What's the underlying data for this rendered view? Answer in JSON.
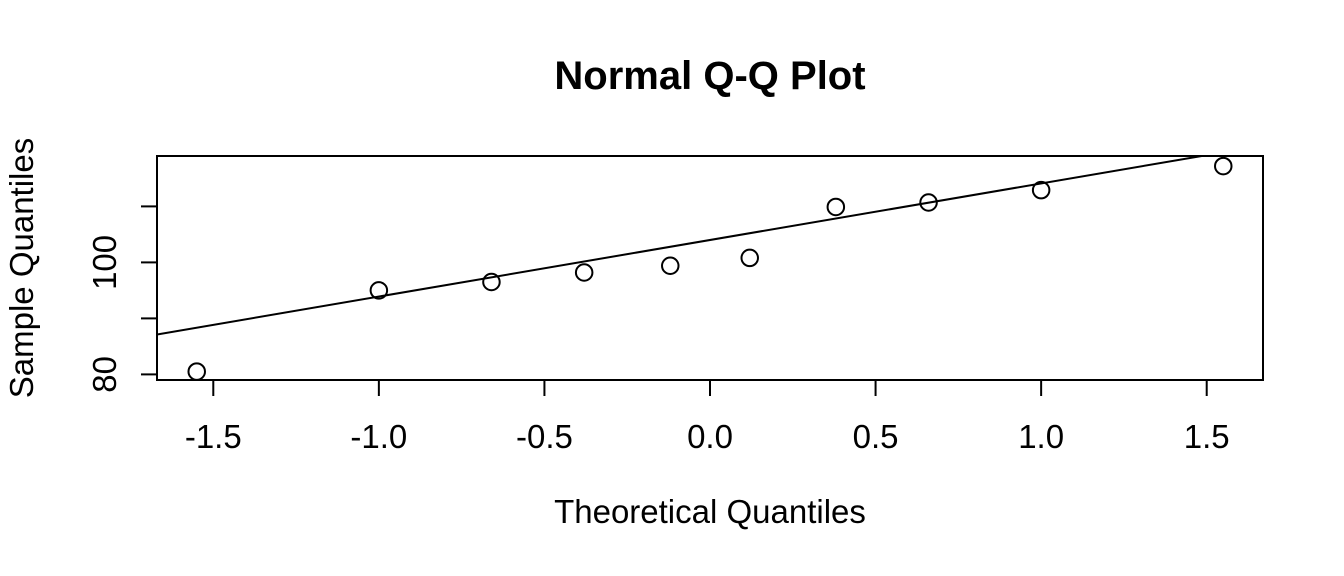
{
  "chart_data": {
    "type": "scatter",
    "subtype": "normal-qq-plot",
    "title": "Normal Q-Q Plot",
    "xlabel": "Theoretical Quantiles",
    "ylabel": "Sample Quantiles",
    "xlim": [
      -1.67,
      1.67
    ],
    "ylim": [
      79.0,
      119.0
    ],
    "grid": false,
    "legend": "none",
    "x_ticks": [
      {
        "value": -1.5,
        "label": "-1.5"
      },
      {
        "value": -1.0,
        "label": "-1.0"
      },
      {
        "value": -0.5,
        "label": "-0.5"
      },
      {
        "value": 0.0,
        "label": "0.0"
      },
      {
        "value": 0.5,
        "label": "0.5"
      },
      {
        "value": 1.0,
        "label": "1.0"
      },
      {
        "value": 1.5,
        "label": "1.5"
      }
    ],
    "y_ticks": [
      {
        "value": 80,
        "label": "80"
      },
      {
        "value": 90,
        "label": ""
      },
      {
        "value": 100,
        "label": "100"
      },
      {
        "value": 110,
        "label": ""
      }
    ],
    "points": [
      {
        "x": -1.55,
        "y": 80.5
      },
      {
        "x": -1.0,
        "y": 95.0
      },
      {
        "x": -0.66,
        "y": 96.5
      },
      {
        "x": -0.38,
        "y": 98.2
      },
      {
        "x": -0.12,
        "y": 99.4
      },
      {
        "x": 0.12,
        "y": 100.8
      },
      {
        "x": 0.38,
        "y": 109.9
      },
      {
        "x": 0.66,
        "y": 110.7
      },
      {
        "x": 1.0,
        "y": 112.9
      },
      {
        "x": 1.55,
        "y": 117.2
      }
    ],
    "qq_line": {
      "slope": 10.1,
      "intercept": 104.0
    },
    "colors": {
      "stroke": "#000000",
      "point_stroke": "#000000",
      "background": "#ffffff"
    }
  }
}
